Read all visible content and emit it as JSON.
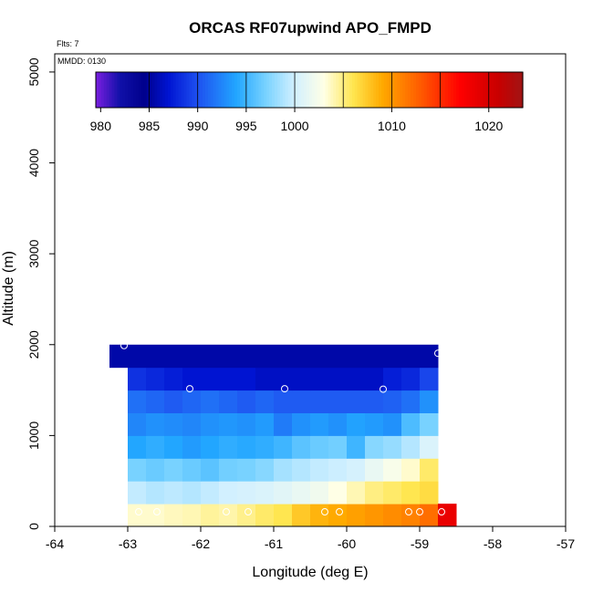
{
  "chart_data": {
    "type": "heatmap",
    "title": "ORCAS RF07upwind APO_FMPD",
    "fits_text": "Flts: 7",
    "mmdd_text": "MMDD: 0130",
    "xlabel": "Longitude (deg E)",
    "ylabel": "Altitude (m)",
    "xlim": [
      -64,
      -57
    ],
    "ylim": [
      0,
      5200
    ],
    "x_ticks": [
      -64,
      -63,
      -62,
      -61,
      -60,
      -59,
      -58,
      -57
    ],
    "x_tick_labels": [
      "-64",
      "-63",
      "-62",
      "-61",
      "-60",
      "-59",
      "-58",
      "-57"
    ],
    "y_ticks": [
      0,
      1000,
      2000,
      3000,
      4000,
      5000
    ],
    "y_tick_labels": [
      "0",
      "1000",
      "2000",
      "3000",
      "4000",
      "5000"
    ],
    "colorbar": {
      "min": 979.5,
      "max": 1023.5,
      "ticks": [
        980,
        985,
        990,
        995,
        1000,
        1010,
        1020
      ],
      "tick_labels": [
        "980",
        "985",
        "990",
        "995",
        "1000",
        "1010",
        "1020"
      ],
      "boundaries": [
        985,
        990,
        995,
        1000,
        1005,
        1010,
        1015,
        1020
      ],
      "stops": [
        {
          "v": 979.5,
          "c": "#7a1fe0"
        },
        {
          "v": 982,
          "c": "#1010a8"
        },
        {
          "v": 984.5,
          "c": "#00008c"
        },
        {
          "v": 987,
          "c": "#0014d2"
        },
        {
          "v": 990,
          "c": "#1e50f0"
        },
        {
          "v": 994,
          "c": "#22a6ff"
        },
        {
          "v": 997,
          "c": "#78d2ff"
        },
        {
          "v": 1000,
          "c": "#d2f0ff"
        },
        {
          "v": 1003,
          "c": "#ffffe6"
        },
        {
          "v": 1006,
          "c": "#ffe650"
        },
        {
          "v": 1009,
          "c": "#ffaa00"
        },
        {
          "v": 1013,
          "c": "#ff5a00"
        },
        {
          "v": 1017,
          "c": "#ff0000"
        },
        {
          "v": 1021,
          "c": "#c80000"
        },
        {
          "v": 1023.5,
          "c": "#a01414"
        }
      ]
    },
    "grid": {
      "x_edges": [
        -63.0,
        -62.75,
        -62.5,
        -62.25,
        -62.0,
        -61.75,
        -61.5,
        -61.25,
        -61.0,
        -60.75,
        -60.5,
        -60.25,
        -60.0,
        -59.75,
        -59.5,
        -59.25,
        -59.0,
        -58.75
      ],
      "rows": [
        {
          "y0": 0,
          "y1": 250,
          "x0": -63.0,
          "x1": -58.75,
          "values": [
            1003.5,
            1003.5,
            1003.8,
            1004.0,
            1004.5,
            1004.2,
            1004.8,
            1005.5,
            1006.0,
            1007.5,
            1008.5,
            1009.0,
            1009.5,
            1010.0,
            1010.5,
            1011.0,
            1012.0
          ]
        },
        {
          "y0": 250,
          "y1": 500,
          "x0": -63.0,
          "x1": -58.75,
          "values": [
            999.5,
            999.0,
            999.3,
            999.0,
            999.5,
            1000.0,
            1000.3,
            1000.5,
            1001.0,
            1001.5,
            1002.0,
            1003.0,
            1004.0,
            1005.0,
            1005.5,
            1006.0,
            1006.5
          ]
        },
        {
          "y0": 500,
          "y1": 750,
          "x0": -63.0,
          "x1": -58.75,
          "values": [
            997.0,
            996.5,
            997.0,
            996.5,
            996.0,
            996.8,
            997.0,
            997.5,
            998.5,
            999.0,
            999.5,
            999.8,
            1000.2,
            1001.5,
            1002.5,
            1003.5,
            1005.5
          ]
        },
        {
          "y0": 750,
          "y1": 1000,
          "x0": -63.0,
          "x1": -58.75,
          "values": [
            994.0,
            994.5,
            994.0,
            993.5,
            994.0,
            994.5,
            994.2,
            994.5,
            995.0,
            996.0,
            996.5,
            996.8,
            995.0,
            997.5,
            998.0,
            999.0,
            1000.5
          ]
        },
        {
          "y0": 1000,
          "y1": 1250,
          "x0": -63.0,
          "x1": -58.75,
          "values": [
            992.5,
            993.0,
            992.8,
            992.5,
            993.0,
            993.3,
            993.0,
            993.5,
            992.0,
            993.0,
            993.5,
            993.0,
            993.8,
            993.5,
            993.0,
            995.5,
            997.0
          ]
        },
        {
          "y0": 1250,
          "y1": 1500,
          "x0": -63.0,
          "x1": -58.75,
          "values": [
            991.5,
            991.0,
            990.5,
            991.0,
            991.5,
            991.0,
            990.5,
            991.0,
            990.5,
            990.5,
            990.5,
            990.5,
            990.5,
            990.5,
            990.8,
            991.5,
            993.0
          ]
        },
        {
          "y0": 1500,
          "y1": 1750,
          "x0": -63.0,
          "x1": -58.75,
          "values": [
            988.5,
            988.0,
            987.5,
            987.0,
            987.0,
            987.0,
            987.0,
            986.5,
            986.5,
            986.5,
            986.5,
            986.5,
            986.5,
            986.5,
            987.5,
            988.0,
            989.5
          ]
        },
        {
          "y0": 1750,
          "y1": 2000,
          "x0": -63.25,
          "x1": -58.75,
          "values": [
            985.5
          ]
        }
      ],
      "extra_cells": [
        {
          "x0": -58.75,
          "x1": -58.5,
          "y0": 0,
          "y1": 250,
          "value": 1018.5
        }
      ]
    },
    "points": [
      {
        "lon": -63.05,
        "alt": 1990
      },
      {
        "lon": -58.75,
        "alt": 1905
      },
      {
        "lon": -62.15,
        "alt": 1515
      },
      {
        "lon": -60.85,
        "alt": 1515
      },
      {
        "lon": -59.5,
        "alt": 1510
      },
      {
        "lon": -62.85,
        "alt": 160
      },
      {
        "lon": -62.6,
        "alt": 160
      },
      {
        "lon": -61.65,
        "alt": 160
      },
      {
        "lon": -61.35,
        "alt": 160
      },
      {
        "lon": -60.3,
        "alt": 160
      },
      {
        "lon": -60.1,
        "alt": 160
      },
      {
        "lon": -59.15,
        "alt": 160
      },
      {
        "lon": -59.0,
        "alt": 160
      },
      {
        "lon": -58.7,
        "alt": 160
      }
    ]
  }
}
